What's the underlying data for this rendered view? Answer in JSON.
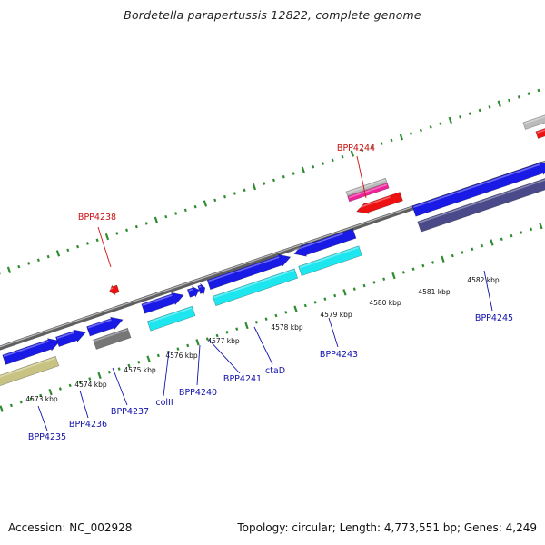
{
  "title": "Bordetella parapertussis 12822, complete genome",
  "footer": {
    "accession": "Accession: NC_002928",
    "summary": "Topology: circular; Length: 4,773,551 bp; Genes: 4,249"
  },
  "ticks": [
    "4573 kbp",
    "4574 kbp",
    "4575 kbp",
    "4576 kbp",
    "4577 kbp",
    "4578 kbp",
    "4579 kbp",
    "4580 kbp",
    "4581 kbp",
    "4582 kbp"
  ],
  "labels": [
    "BPP4235",
    "BPP4236",
    "BPP4237",
    "colII",
    "BPP4240",
    "BPP4241",
    "ctaD",
    "BPP4243",
    "BPP4245",
    "BPP4238",
    "BPP4244"
  ],
  "colors": {
    "blue": "#1a1ae6",
    "cyan": "#1ee6ee",
    "red": "#ee1111",
    "pink": "#ee2299",
    "gray": "#777777",
    "silver": "#bbbbbb",
    "olive": "#c8c382",
    "navy": "#4a4a8a",
    "tick_green": "#2e8b2e",
    "label_blue": "#1111aa",
    "label_red": "#cc1111"
  }
}
